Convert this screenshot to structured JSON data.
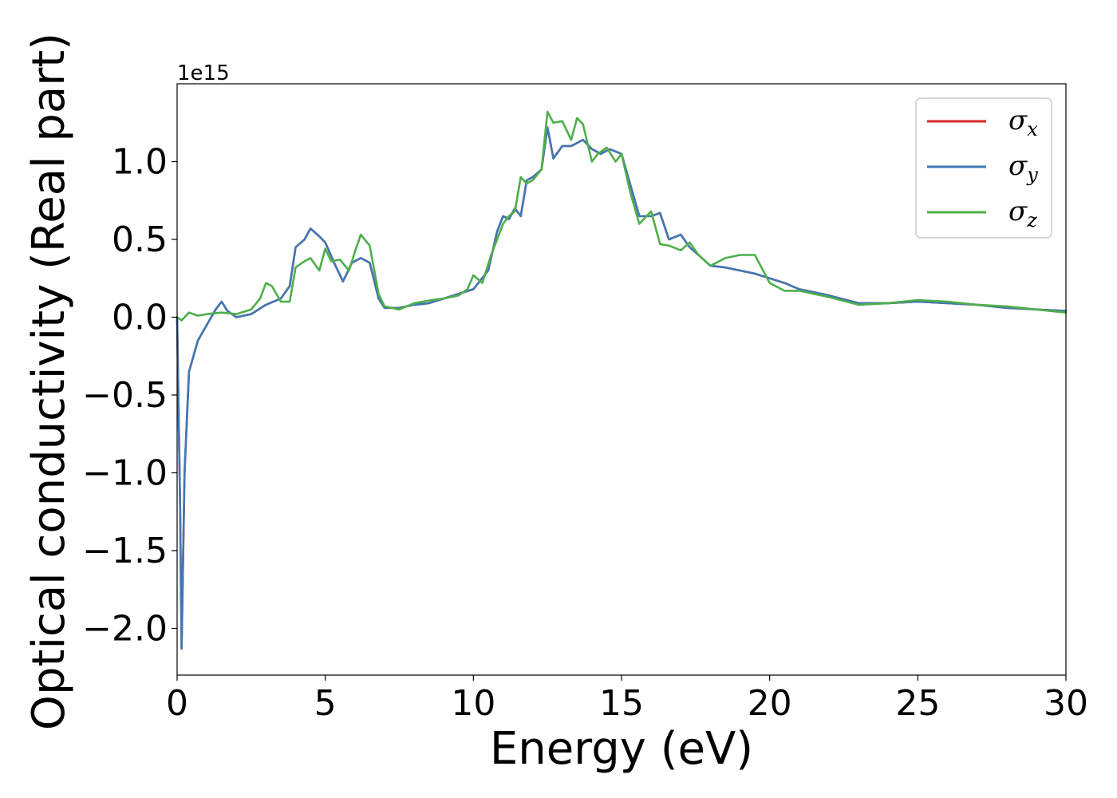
{
  "chart_data": {
    "type": "line",
    "title": "",
    "xlabel": "Energy (eV)",
    "ylabel": "Optical conductivity (Real part)",
    "y_offset_label": "1e15",
    "xlim": [
      0,
      30
    ],
    "ylim": [
      -2.3,
      1.5
    ],
    "grid": false,
    "legend_position": "top-right",
    "x_ticks": [
      0,
      5,
      10,
      15,
      20,
      25,
      30
    ],
    "x_tick_labels": [
      "0",
      "5",
      "10",
      "15",
      "20",
      "25",
      "30"
    ],
    "y_ticks": [
      -2.0,
      -1.5,
      -1.0,
      -0.5,
      0.0,
      0.5,
      1.0
    ],
    "y_tick_labels": [
      "−2.0",
      "−1.5",
      "−1.0",
      "−0.5",
      "0.0",
      "0.5",
      "1.0"
    ],
    "series": [
      {
        "name": "σ",
        "subscript": "x",
        "color": "#d62728",
        "x": [
          0.0,
          0.1,
          0.15,
          0.25,
          0.4,
          0.7,
          1.0,
          1.3,
          1.5,
          1.7,
          2.0,
          2.5,
          3.0,
          3.5,
          3.8,
          4.0,
          4.3,
          4.5,
          4.8,
          5.0,
          5.3,
          5.6,
          5.9,
          6.2,
          6.5,
          6.8,
          7.0,
          7.5,
          8.0,
          8.5,
          9.0,
          9.5,
          10.0,
          10.5,
          10.8,
          11.0,
          11.2,
          11.4,
          11.6,
          11.8,
          12.0,
          12.3,
          12.5,
          12.7,
          13.0,
          13.3,
          13.5,
          13.7,
          14.0,
          14.3,
          14.6,
          15.0,
          15.3,
          15.6,
          16.0,
          16.3,
          16.6,
          17.0,
          17.3,
          17.6,
          18.0,
          18.5,
          19.0,
          19.5,
          20.0,
          20.5,
          21.0,
          22.0,
          23.0,
          24.0,
          25.0,
          26.0,
          27.0,
          28.0,
          29.0,
          30.0
        ],
        "y": [
          0.0,
          -1.2,
          -2.13,
          -1.0,
          -0.35,
          -0.15,
          -0.05,
          0.05,
          0.1,
          0.04,
          0.0,
          0.02,
          0.08,
          0.12,
          0.2,
          0.45,
          0.5,
          0.57,
          0.52,
          0.48,
          0.35,
          0.23,
          0.35,
          0.38,
          0.35,
          0.12,
          0.06,
          0.06,
          0.08,
          0.09,
          0.12,
          0.15,
          0.18,
          0.3,
          0.55,
          0.65,
          0.63,
          0.7,
          0.65,
          0.88,
          0.9,
          0.95,
          1.22,
          1.02,
          1.1,
          1.1,
          1.12,
          1.14,
          1.08,
          1.05,
          1.08,
          1.05,
          0.85,
          0.65,
          0.65,
          0.67,
          0.5,
          0.53,
          0.45,
          0.4,
          0.33,
          0.32,
          0.3,
          0.28,
          0.25,
          0.22,
          0.18,
          0.14,
          0.09,
          0.09,
          0.1,
          0.09,
          0.08,
          0.06,
          0.05,
          0.04
        ]
      },
      {
        "name": "σ",
        "subscript": "y",
        "color": "#3f78b5",
        "x": [
          0.0,
          0.1,
          0.15,
          0.25,
          0.4,
          0.7,
          1.0,
          1.3,
          1.5,
          1.7,
          2.0,
          2.5,
          3.0,
          3.5,
          3.8,
          4.0,
          4.3,
          4.5,
          4.8,
          5.0,
          5.3,
          5.6,
          5.9,
          6.2,
          6.5,
          6.8,
          7.0,
          7.5,
          8.0,
          8.5,
          9.0,
          9.5,
          10.0,
          10.5,
          10.8,
          11.0,
          11.2,
          11.4,
          11.6,
          11.8,
          12.0,
          12.3,
          12.5,
          12.7,
          13.0,
          13.3,
          13.5,
          13.7,
          14.0,
          14.3,
          14.6,
          15.0,
          15.3,
          15.6,
          16.0,
          16.3,
          16.6,
          17.0,
          17.3,
          17.6,
          18.0,
          18.5,
          19.0,
          19.5,
          20.0,
          20.5,
          21.0,
          22.0,
          23.0,
          24.0,
          25.0,
          26.0,
          27.0,
          28.0,
          29.0,
          30.0
        ],
        "y": [
          0.0,
          -1.2,
          -2.13,
          -1.0,
          -0.35,
          -0.15,
          -0.05,
          0.05,
          0.1,
          0.04,
          0.0,
          0.02,
          0.08,
          0.12,
          0.2,
          0.45,
          0.5,
          0.57,
          0.52,
          0.48,
          0.35,
          0.23,
          0.35,
          0.38,
          0.35,
          0.12,
          0.06,
          0.06,
          0.08,
          0.09,
          0.12,
          0.15,
          0.18,
          0.3,
          0.55,
          0.65,
          0.63,
          0.7,
          0.65,
          0.88,
          0.9,
          0.95,
          1.22,
          1.02,
          1.1,
          1.1,
          1.12,
          1.14,
          1.08,
          1.05,
          1.08,
          1.05,
          0.85,
          0.65,
          0.65,
          0.67,
          0.5,
          0.53,
          0.45,
          0.4,
          0.33,
          0.32,
          0.3,
          0.28,
          0.25,
          0.22,
          0.18,
          0.14,
          0.09,
          0.09,
          0.1,
          0.09,
          0.08,
          0.06,
          0.05,
          0.04
        ]
      },
      {
        "name": "σ",
        "subscript": "z",
        "color": "#4daf4a",
        "x": [
          0.0,
          0.15,
          0.4,
          0.7,
          1.0,
          1.5,
          2.0,
          2.5,
          2.8,
          3.0,
          3.2,
          3.5,
          3.8,
          4.0,
          4.3,
          4.5,
          4.8,
          5.0,
          5.2,
          5.5,
          5.8,
          6.0,
          6.2,
          6.5,
          6.8,
          7.0,
          7.5,
          8.0,
          8.3,
          8.6,
          9.0,
          9.5,
          9.8,
          10.0,
          10.3,
          10.6,
          10.8,
          11.0,
          11.2,
          11.4,
          11.6,
          11.8,
          12.0,
          12.3,
          12.5,
          12.7,
          13.0,
          13.3,
          13.5,
          13.7,
          14.0,
          14.2,
          14.5,
          14.8,
          15.0,
          15.3,
          15.6,
          16.0,
          16.3,
          16.6,
          17.0,
          17.3,
          17.6,
          18.0,
          18.5,
          19.0,
          19.5,
          20.0,
          20.5,
          21.0,
          22.0,
          23.0,
          24.0,
          25.0,
          26.0,
          27.0,
          28.0,
          29.0,
          30.0
        ],
        "y": [
          0.0,
          -0.02,
          0.03,
          0.01,
          0.02,
          0.03,
          0.02,
          0.05,
          0.12,
          0.22,
          0.2,
          0.1,
          0.1,
          0.32,
          0.36,
          0.38,
          0.3,
          0.44,
          0.36,
          0.37,
          0.3,
          0.42,
          0.53,
          0.46,
          0.15,
          0.07,
          0.05,
          0.09,
          0.1,
          0.11,
          0.12,
          0.14,
          0.18,
          0.27,
          0.22,
          0.4,
          0.5,
          0.6,
          0.65,
          0.68,
          0.9,
          0.86,
          0.88,
          0.95,
          1.32,
          1.25,
          1.26,
          1.14,
          1.28,
          1.24,
          1.0,
          1.05,
          1.09,
          1.0,
          1.05,
          0.8,
          0.6,
          0.68,
          0.47,
          0.46,
          0.43,
          0.48,
          0.4,
          0.33,
          0.38,
          0.4,
          0.4,
          0.22,
          0.17,
          0.17,
          0.13,
          0.08,
          0.09,
          0.11,
          0.1,
          0.08,
          0.07,
          0.05,
          0.03
        ]
      }
    ]
  }
}
